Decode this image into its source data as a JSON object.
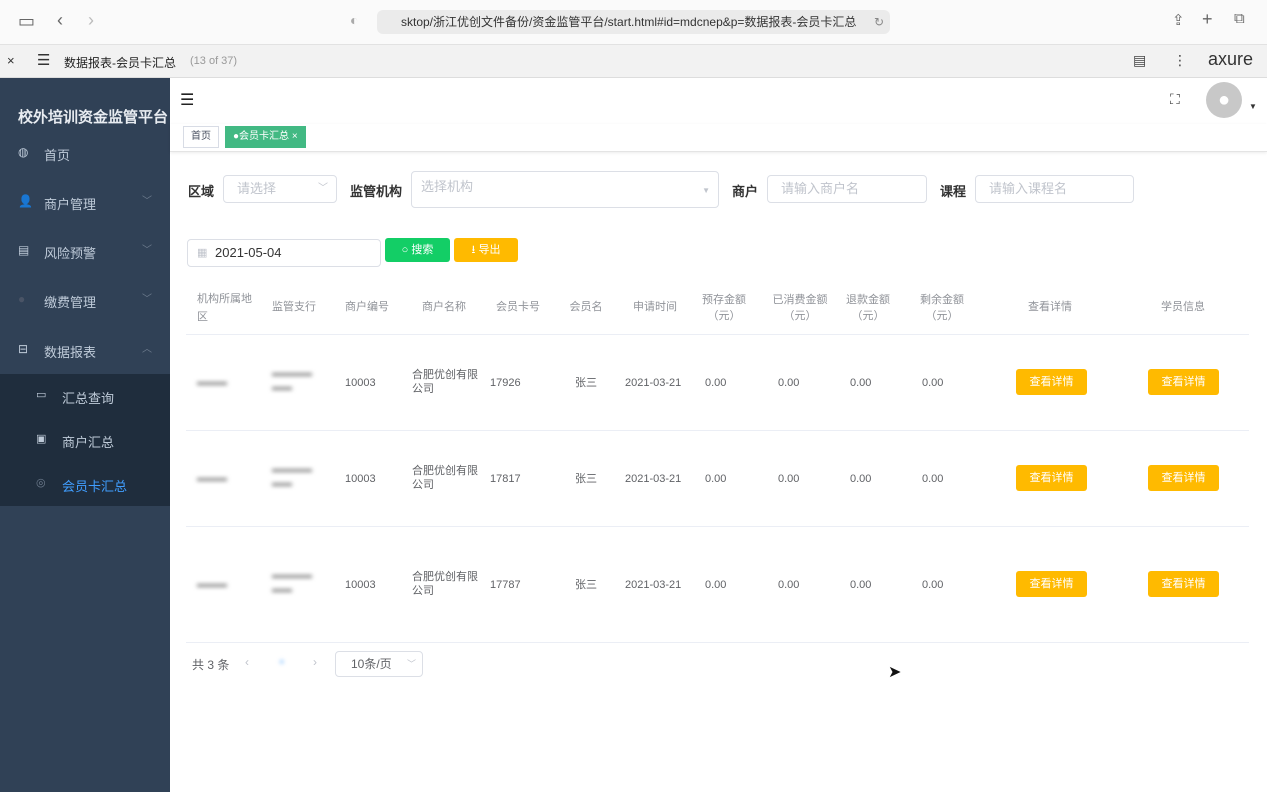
{
  "browser": {
    "url": "sktop/浙江优创文件备份/资金监管平台/start.html#id=mdcnep&p=数据报表-会员卡汇总"
  },
  "axure": {
    "page_title": "数据报表-会员卡汇总",
    "page_count": "(13 of 37)",
    "logo": "axure"
  },
  "sidebar": {
    "title": "校外培训资金监管平台",
    "items": [
      {
        "label": "首页",
        "icon": "dashboard-icon"
      },
      {
        "label": "商户管理",
        "icon": "users-icon"
      },
      {
        "label": "风险预警",
        "icon": "document-icon"
      },
      {
        "label": "缴费管理",
        "icon": "globe-icon"
      },
      {
        "label": "数据报表",
        "icon": "briefcase-icon"
      }
    ],
    "sub_items": [
      {
        "label": "汇总查询",
        "icon": "monitor-icon"
      },
      {
        "label": "商户汇总",
        "icon": "card-icon"
      },
      {
        "label": "会员卡汇总",
        "icon": "circle-icon",
        "active": true
      }
    ],
    "accent": "#409eff"
  },
  "tags": {
    "home": "首页",
    "active": "●会员卡汇总 ×"
  },
  "filters": {
    "region_label": "区域",
    "region_placeholder": "请选择",
    "org_label": "监管机构",
    "org_placeholder": "选择机构",
    "merchant_label": "商户",
    "merchant_placeholder": "请输入商户名",
    "course_label": "课程",
    "course_placeholder": "请输入课程名",
    "date": "2021-05-04",
    "search": "搜索",
    "export": "导出"
  },
  "table": {
    "headers": [
      "机构所属地区",
      "监管支行",
      "商户编号",
      "商户名称",
      "会员卡号",
      "会员名",
      "申请时间",
      "预存金额（元）",
      "已消费金额（元）",
      "退款金额（元）",
      "剩余金额（元）",
      "查看详情",
      "学员信息"
    ],
    "rows": [
      {
        "merchant_no": "10003",
        "merchant_name": "合肥优创有限公司",
        "card_no": "17926",
        "member": "张三",
        "date": "2021-03-21",
        "deposit": "0.00",
        "consumed": "0.00",
        "refund": "0.00",
        "remaining": "0.00",
        "detail": "查看详情",
        "student": "查看详情"
      },
      {
        "merchant_no": "10003",
        "merchant_name": "合肥优创有限公司",
        "card_no": "17817",
        "member": "张三",
        "date": "2021-03-21",
        "deposit": "0.00",
        "consumed": "0.00",
        "refund": "0.00",
        "remaining": "0.00",
        "detail": "查看详情",
        "student": "查看详情"
      },
      {
        "merchant_no": "10003",
        "merchant_name": "合肥优创有限公司",
        "card_no": "17787",
        "member": "张三",
        "date": "2021-03-21",
        "deposit": "0.00",
        "consumed": "0.00",
        "refund": "0.00",
        "remaining": "0.00",
        "detail": "查看详情",
        "student": "查看详情"
      }
    ]
  },
  "pagination": {
    "total": "共 3 条",
    "page_size": "10条/页"
  },
  "colors": {
    "green": "#13ce66",
    "orange": "#ffba00",
    "sidebar": "#304156"
  }
}
